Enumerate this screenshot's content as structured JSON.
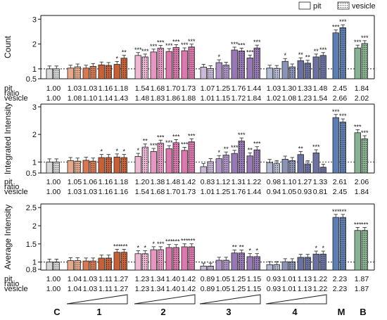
{
  "legend": {
    "pit": "pit",
    "vesicle": "vesicle"
  },
  "group_labels": [
    "C",
    "1",
    "2",
    "3",
    "4",
    "M",
    "B"
  ],
  "row_labels": {
    "pit": "pit",
    "vesicle": "vesicle",
    "ratio": "ratio"
  },
  "colors": {
    "C": "#d9d9d9",
    "1": [
      "#f0c7b4",
      "#e8a98b",
      "#e08e69",
      "#d9784f",
      "#d06a40",
      "#c95f35"
    ],
    "2": [
      "#f2c6dd",
      "#eeb7d4",
      "#eaa6ca",
      "#e696c1",
      "#e187b8",
      "#dc78ae"
    ],
    "3": [
      "#d9cde6",
      "#cbb9dc",
      "#bca6d2",
      "#ae93c8",
      "#a283bf",
      "#9777b6"
    ],
    "4": [
      "#cfd3e3",
      "#b5bad3",
      "#9ea5c5",
      "#8a92b8",
      "#7980ad",
      "#6b72a3"
    ],
    "M": "#5b7fb5",
    "B": "#87b393"
  },
  "chart_data": [
    {
      "type": "bar",
      "ylabel": "Count",
      "ylim": [
        0.6,
        3.15
      ],
      "yticks": [
        0.5,
        1,
        2,
        3
      ],
      "reference_line": 1,
      "groups": [
        "C",
        "1",
        "2",
        "3",
        "4",
        "M",
        "B"
      ],
      "pit": [
        [
          1.0
        ],
        [
          1.03,
          1.03,
          1.16,
          1.18
        ],
        [
          1.54,
          1.68,
          1.7,
          1.73
        ],
        [
          1.07,
          1.25,
          1.76,
          1.44
        ],
        [
          1.03,
          1.3,
          1.33,
          1.48
        ],
        [
          2.45
        ],
        [
          1.84
        ]
      ],
      "vesicle": [
        [
          1.0
        ],
        [
          1.08,
          1.1,
          1.14,
          1.43
        ],
        [
          1.48,
          1.83,
          1.86,
          1.88
        ],
        [
          1.01,
          1.15,
          1.72,
          1.84
        ],
        [
          1.02,
          1.08,
          1.23,
          1.54
        ],
        [
          2.66
        ],
        [
          2.02
        ]
      ],
      "pit_labels": [
        [
          "1.00"
        ],
        [
          "1.03",
          "1.03",
          "1.16",
          "1.18"
        ],
        [
          "1.54",
          "1.68",
          "1.70",
          "1.73"
        ],
        [
          "1.07",
          "1.25",
          "1.76",
          "1.44"
        ],
        [
          "1.03",
          "1.30",
          "1.33",
          "1.48"
        ],
        [
          "2.45"
        ],
        [
          "1.84"
        ]
      ],
      "vesicle_labels": [
        [
          "1.00"
        ],
        [
          "1.08",
          "1.10",
          "1.14",
          "1.43"
        ],
        [
          "1.48",
          "1.83",
          "1.86",
          "1.88"
        ],
        [
          "1.01",
          "1.15",
          "1.72",
          "1.84"
        ],
        [
          "1.02",
          "1.08",
          "1.23",
          "1.54"
        ],
        [
          "2.66"
        ],
        [
          "2.02"
        ]
      ],
      "sig_pit": [
        [
          ""
        ],
        [
          "",
          "",
          "",
          "*"
        ],
        [
          "***",
          "***",
          "***",
          "***"
        ],
        [
          "",
          "*",
          "***",
          "***"
        ],
        [
          "",
          "*",
          "**",
          "**"
        ],
        [
          "***"
        ],
        [
          "***"
        ]
      ],
      "sig_vesicle": [
        [
          ""
        ],
        [
          "",
          "",
          "",
          "**"
        ],
        [
          "***",
          "***",
          "***",
          "***"
        ],
        [
          "",
          "",
          "***",
          "***"
        ],
        [
          "",
          "",
          "**",
          "***"
        ],
        [
          "***"
        ],
        [
          "***"
        ]
      ]
    },
    {
      "type": "bar",
      "ylabel": "Integrated Intensity",
      "ylim": [
        0.6,
        3.1
      ],
      "yticks": [
        0.5,
        1,
        2,
        3
      ],
      "reference_line": 1,
      "groups": [
        "C",
        "1",
        "2",
        "3",
        "4",
        "M",
        "B"
      ],
      "pit": [
        [
          1.0
        ],
        [
          1.05,
          1.06,
          1.16,
          1.18
        ],
        [
          1.2,
          1.38,
          1.48,
          1.42
        ],
        [
          0.83,
          1.12,
          1.31,
          1.22
        ],
        [
          0.98,
          1.1,
          1.27,
          1.33
        ],
        [
          2.61
        ],
        [
          2.06
        ]
      ],
      "vesicle": [
        [
          1.0
        ],
        [
          1.03,
          1.03,
          1.16,
          1.16
        ],
        [
          1.54,
          1.68,
          1.7,
          1.73
        ],
        [
          1.01,
          1.25,
          1.76,
          1.44
        ],
        [
          0.94,
          1.05,
          0.93,
          0.81
        ],
        [
          2.45
        ],
        [
          1.84
        ]
      ],
      "pit_labels": [
        [
          "1.00"
        ],
        [
          "1.05",
          "1.06",
          "1.16",
          "1.18"
        ],
        [
          "1.20",
          "1.38",
          "1.48",
          "1.42"
        ],
        [
          "0.83",
          "1.12",
          "1.31",
          "1.22"
        ],
        [
          "0.98",
          "1.10",
          "1.27",
          "1.33"
        ],
        [
          "2.61"
        ],
        [
          "2.06"
        ]
      ],
      "vesicle_labels": [
        [
          "1.00"
        ],
        [
          "1.03",
          "1.03",
          "1.16",
          "1.16"
        ],
        [
          "1.54",
          "1.68",
          "1.70",
          "1.73"
        ],
        [
          "1.01",
          "1.25",
          "1.76",
          "1.44"
        ],
        [
          "0.94",
          "1.05",
          "0.93",
          "0.81"
        ],
        [
          "2.45"
        ],
        [
          "1.84"
        ]
      ],
      "sig_pit": [
        [
          ""
        ],
        [
          "",
          "",
          "*",
          "*"
        ],
        [
          "*",
          "***",
          "***",
          "***"
        ],
        [
          "",
          "*",
          "***",
          "**"
        ],
        [
          "",
          "",
          "**",
          "***"
        ],
        [
          "***"
        ],
        [
          "***"
        ]
      ],
      "sig_vesicle": [
        [
          ""
        ],
        [
          "",
          "",
          "",
          "*"
        ],
        [
          "**",
          "***",
          "***",
          "***"
        ],
        [
          "",
          "**",
          "***",
          "***"
        ],
        [
          "",
          "",
          "",
          ""
        ],
        [
          "***"
        ],
        [
          "***"
        ]
      ]
    },
    {
      "type": "bar",
      "ylabel": "Average Intensity",
      "ylim": [
        0.78,
        2.6
      ],
      "yticks": [
        0.8,
        1,
        1.5,
        2,
        2.5
      ],
      "reference_line": 1,
      "groups": [
        "C",
        "1",
        "2",
        "3",
        "4",
        "M",
        "B"
      ],
      "pit": [
        [
          1.0
        ],
        [
          1.04,
          1.03,
          1.11,
          1.27
        ],
        [
          1.23,
          1.34,
          1.4,
          1.42
        ],
        [
          0.89,
          1.05,
          1.25,
          1.15
        ],
        [
          0.93,
          1.01,
          1.13,
          1.22
        ],
        [
          2.23
        ],
        [
          1.87
        ]
      ],
      "vesicle": [
        [
          1.0
        ],
        [
          1.04,
          1.03,
          1.11,
          1.27
        ],
        [
          1.23,
          1.34,
          1.4,
          1.42
        ],
        [
          0.89,
          1.05,
          1.25,
          1.15
        ],
        [
          0.93,
          1.01,
          1.13,
          1.22
        ],
        [
          2.23
        ],
        [
          1.87
        ]
      ],
      "pit_labels": [
        [
          "1.00"
        ],
        [
          "1.04",
          "1.03",
          "1.11",
          "1.27"
        ],
        [
          "1.23",
          "1.34",
          "1.40",
          "1.42"
        ],
        [
          "0.89",
          "1.05",
          "1.25",
          "1.15"
        ],
        [
          "0.93",
          "1.01",
          "1.13",
          "1.22"
        ],
        [
          "2.23"
        ],
        [
          "1.87"
        ]
      ],
      "vesicle_labels": [
        [
          "1.00"
        ],
        [
          "1.04",
          "1.03",
          "1.11",
          "1.27"
        ],
        [
          "1.23",
          "1.34",
          "1.40",
          "1.42"
        ],
        [
          "0.89",
          "1.05",
          "1.25",
          "1.15"
        ],
        [
          "0.93",
          "1.01",
          "1.13",
          "1.22"
        ],
        [
          "2.23"
        ],
        [
          "1.87"
        ]
      ],
      "sig_pit": [
        [
          ""
        ],
        [
          "",
          "",
          "",
          "***"
        ],
        [
          "*",
          "*",
          "***",
          "***"
        ],
        [
          "",
          "",
          "**",
          "*"
        ],
        [
          "",
          "",
          "",
          "*"
        ],
        [
          "***"
        ],
        [
          "***"
        ]
      ],
      "sig_vesicle": [
        [
          ""
        ],
        [
          "",
          "",
          "",
          "***"
        ],
        [
          "*",
          "***",
          "***",
          "***"
        ],
        [
          "",
          "",
          "**",
          "*"
        ],
        [
          "",
          "",
          "",
          "*"
        ],
        [
          "***"
        ],
        [
          "***"
        ]
      ]
    }
  ]
}
